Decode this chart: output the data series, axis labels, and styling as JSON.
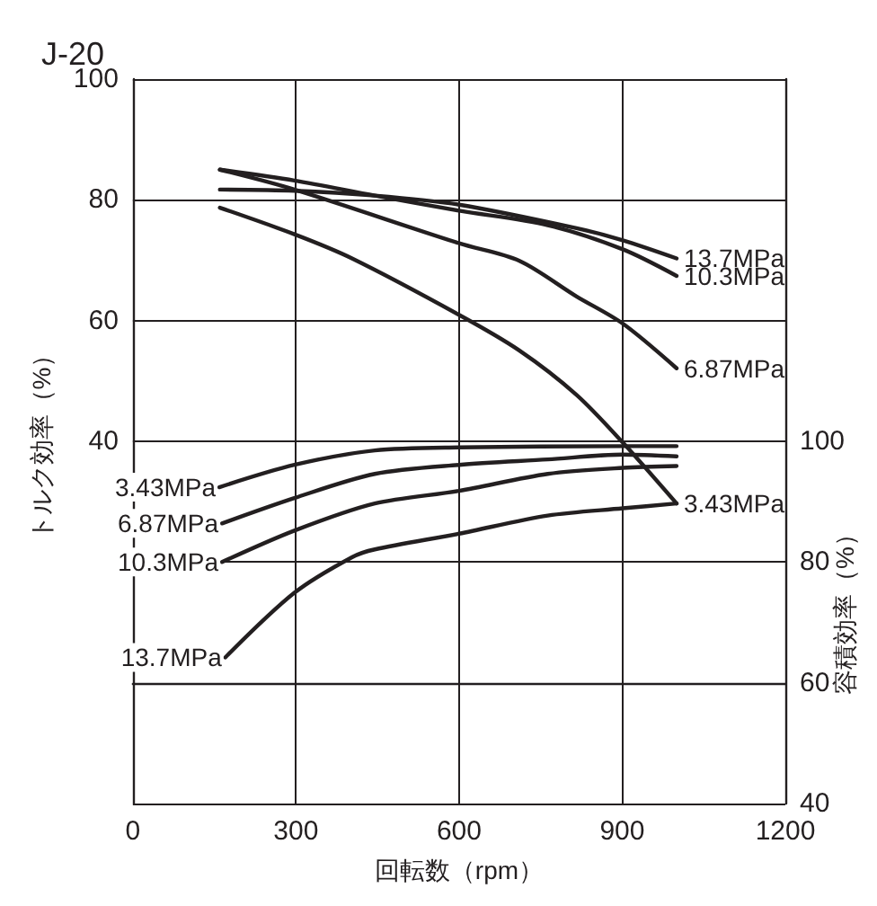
{
  "chart_data": {
    "type": "line",
    "title": "J-20",
    "xlabel": "回転数（rpm）",
    "ylabel": "トルク効率（%）",
    "y2label": "容積効率（%）",
    "xlim": [
      0,
      1200
    ],
    "xticks": [
      0,
      300,
      600,
      900,
      1200
    ],
    "ylim": [
      -20,
      100
    ],
    "yticks": [
      {
        "value": -20,
        "label": null
      },
      {
        "value": 0,
        "label": null
      },
      {
        "value": 20,
        "label": null
      },
      40,
      60,
      80,
      100
    ],
    "y2lim": [
      40,
      160
    ],
    "y2ticks": [
      40,
      60,
      80,
      100
    ],
    "grid": true,
    "legend": false,
    "marker": "none",
    "line_style": "solid",
    "series": [
      {
        "name": "13.7MPa",
        "color": "#231f20",
        "x": [
          160,
          297,
          445,
          600,
          816,
          901,
          1000
        ],
        "values": [
          81.7,
          81.5,
          80.7,
          79.2,
          75.3,
          73.3,
          70.3
        ]
      },
      {
        "name": "10.3MPa",
        "color": "#231f20",
        "x": [
          160,
          297,
          445,
          600,
          763,
          901,
          1000
        ],
        "values": [
          85,
          83.2,
          80.7,
          78.2,
          75.8,
          71.8,
          67.4
        ]
      },
      {
        "name": "6.87MPa",
        "color": "#231f20",
        "x": [
          160,
          297,
          600,
          711,
          816,
          901,
          1000
        ],
        "values": [
          85,
          81.7,
          72.8,
          69.9,
          64,
          59.5,
          52.1
        ]
      },
      {
        "name": "3.43MPa",
        "color": "#231f20",
        "x": [
          160,
          297,
          403,
          599,
          710,
          816,
          901,
          1000
        ],
        "values": [
          78.7,
          74.3,
          70.3,
          61,
          55.1,
          47.7,
          39.8,
          29.7
        ]
      },
      {
        "name": "3.43MPa",
        "color": "#231f20",
        "axis": "y2",
        "x": [
          159,
          297,
          445,
          600,
          901,
          1000
        ],
        "values": [
          92.4,
          96.1,
          98.5,
          99,
          99.2,
          99.2
        ]
      },
      {
        "name": "6.87MPa",
        "color": "#231f20",
        "axis": "y2",
        "x": [
          164,
          297,
          445,
          600,
          763,
          901,
          1000
        ],
        "values": [
          86.4,
          90.6,
          94.6,
          96.1,
          97,
          97.8,
          97.5
        ]
      },
      {
        "name": "10.3MPa",
        "color": "#231f20",
        "axis": "y2",
        "x": [
          164,
          297,
          445,
          600,
          763,
          901,
          1000
        ],
        "values": [
          80,
          85.2,
          89.7,
          91.8,
          94.6,
          95.6,
          95.9
        ]
      },
      {
        "name": "13.7MPa",
        "color": "#231f20",
        "axis": "y2",
        "x": [
          170,
          297,
          403,
          445,
          600,
          763,
          901,
          1000
        ],
        "values": [
          64.2,
          74.9,
          80.8,
          82.1,
          84.7,
          87.7,
          88.9,
          89.7
        ]
      }
    ]
  }
}
